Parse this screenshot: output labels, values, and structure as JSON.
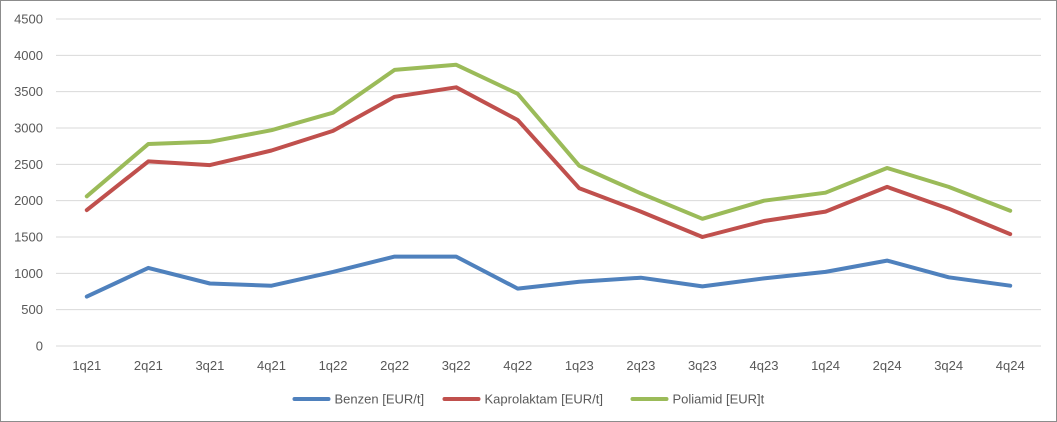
{
  "chart_data": {
    "type": "line",
    "title": "",
    "xlabel": "",
    "ylabel": "",
    "categories": [
      "1q21",
      "2q21",
      "3q21",
      "4q21",
      "1q22",
      "2q22",
      "3q22",
      "4q22",
      "1q23",
      "2q23",
      "3q23",
      "4q23",
      "1q24",
      "2q24",
      "3q24",
      "4q24"
    ],
    "yticks": [
      0,
      500,
      1000,
      1500,
      2000,
      2500,
      3000,
      3500,
      4000,
      4500
    ],
    "ylim": [
      0,
      4500
    ],
    "grid": true,
    "legend_position": "bottom",
    "series": [
      {
        "name": "Benzen [EUR/t]",
        "color": "#4f81bd",
        "values": [
          680,
          1075,
          860,
          830,
          1020,
          1230,
          1230,
          790,
          885,
          940,
          820,
          930,
          1020,
          1175,
          945,
          830
        ]
      },
      {
        "name": "Kaprolaktam [EUR/t]",
        "color": "#c0504d",
        "values": [
          1870,
          2540,
          2490,
          2690,
          2960,
          3430,
          3560,
          3110,
          2170,
          1850,
          1500,
          1720,
          1850,
          2190,
          1890,
          1540
        ]
      },
      {
        "name": "Poliamid [EUR]t",
        "color": "#9bbb59",
        "values": [
          2060,
          2780,
          2810,
          2970,
          3210,
          3800,
          3870,
          3470,
          2480,
          2100,
          1750,
          2000,
          2110,
          2450,
          2190,
          1860
        ]
      }
    ]
  }
}
